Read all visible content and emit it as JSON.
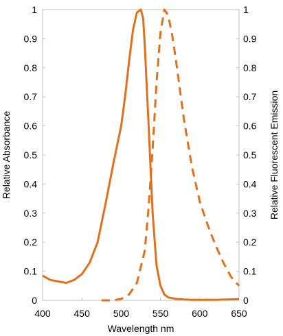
{
  "chart_data": {
    "type": "line",
    "xlabel": "Wavelength nm",
    "ylabel": "Relative Absorbance",
    "y2label": "Relative Fluorescent Emission",
    "xlim": [
      400,
      650
    ],
    "ylim": [
      0,
      1
    ],
    "y2lim": [
      0,
      1
    ],
    "grid": false,
    "legend": "none",
    "color": "#E0701C",
    "x_ticks": [
      "400",
      "450",
      "500",
      "550",
      "600",
      "650"
    ],
    "y_ticks": [
      "0",
      "0.1",
      "0.2",
      "0.3",
      "0.4",
      "0.5",
      "0.6",
      "0.7",
      "0.8",
      "0.9",
      "1"
    ],
    "y2_ticks": [
      "0",
      "0.1",
      "0.2",
      "0.3",
      "0.4",
      "0.5",
      "0.6",
      "0.7",
      "0.8",
      "0.9",
      "1"
    ],
    "series": [
      {
        "style": "solid",
        "axis": "left",
        "x": [
          400,
          410,
          420,
          430,
          440,
          450,
          460,
          470,
          480,
          490,
          500,
          505,
          510,
          515,
          520,
          525,
          528,
          530,
          535,
          540,
          545,
          550,
          555,
          560,
          570,
          580,
          590,
          600,
          620,
          650
        ],
        "y": [
          0.085,
          0.07,
          0.065,
          0.06,
          0.07,
          0.09,
          0.13,
          0.2,
          0.33,
          0.47,
          0.6,
          0.7,
          0.82,
          0.93,
          0.99,
          1.0,
          0.97,
          0.88,
          0.6,
          0.3,
          0.12,
          0.05,
          0.02,
          0.01,
          0.005,
          0.003,
          0.002,
          0.002,
          0.002,
          0.004
        ]
      },
      {
        "style": "dashed",
        "axis": "right",
        "x": [
          475,
          490,
          500,
          510,
          520,
          530,
          535,
          540,
          545,
          550,
          555,
          560,
          565,
          570,
          575,
          580,
          590,
          600,
          610,
          620,
          630,
          640,
          650
        ],
        "y": [
          0.0,
          0.0,
          0.005,
          0.02,
          0.06,
          0.17,
          0.32,
          0.52,
          0.75,
          0.92,
          1.0,
          0.98,
          0.91,
          0.82,
          0.72,
          0.62,
          0.46,
          0.34,
          0.26,
          0.19,
          0.13,
          0.08,
          0.05
        ]
      }
    ]
  }
}
